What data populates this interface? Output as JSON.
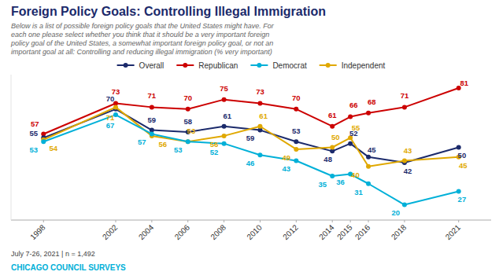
{
  "chart_data": {
    "type": "line",
    "title": "Foreign Policy Goals: Controlling Illegal Immigration",
    "subtitle": "Below is a list of possible foreign policy goals that the United States might have. For\neach one please select whether you think that it should be a very important foreign\npolicy goal of the United States, a somewhat important foreign policy goal, or not an\nimportant goal at all:  Controlling and reducing illegal immigration (% very important)",
    "footnote": "July 7-26, 2021 | n = 1,492",
    "source": "CHICAGO COUNCIL SURVEYS",
    "x": [
      1998,
      2002,
      2004,
      2006,
      2008,
      2010,
      2012,
      2014,
      2015,
      2016,
      2018,
      2021
    ],
    "xlim": [
      1996.2,
      2022.8
    ],
    "xticks": [
      1998,
      2002,
      2004,
      2006,
      2008,
      2010,
      2012,
      2014,
      2015,
      2016,
      2018,
      2021
    ],
    "ylim": [
      12,
      88
    ],
    "series": [
      {
        "name": "Overall",
        "color": "#1b2a6b",
        "values": [
          55,
          70,
          59,
          58,
          61,
          59,
          53,
          48,
          52,
          45,
          42,
          50
        ]
      },
      {
        "name": "Republican",
        "color": "#cc0000",
        "values": [
          57,
          73,
          71,
          70,
          75,
          73,
          70,
          61,
          66,
          68,
          71,
          81
        ]
      },
      {
        "name": "Democrat",
        "color": "#00b0d8",
        "values": [
          53,
          67,
          57,
          53,
          52,
          46,
          43,
          35,
          36,
          31,
          20,
          27
        ]
      },
      {
        "name": "Independent",
        "color": "#e0a800",
        "values": [
          54,
          71,
          56,
          53,
          56,
          61,
          49,
          50,
          55,
          40,
          43,
          45
        ]
      }
    ],
    "marker": "circle",
    "data_labels": true,
    "tick_labels": "x",
    "grid": false,
    "legend": "top"
  }
}
